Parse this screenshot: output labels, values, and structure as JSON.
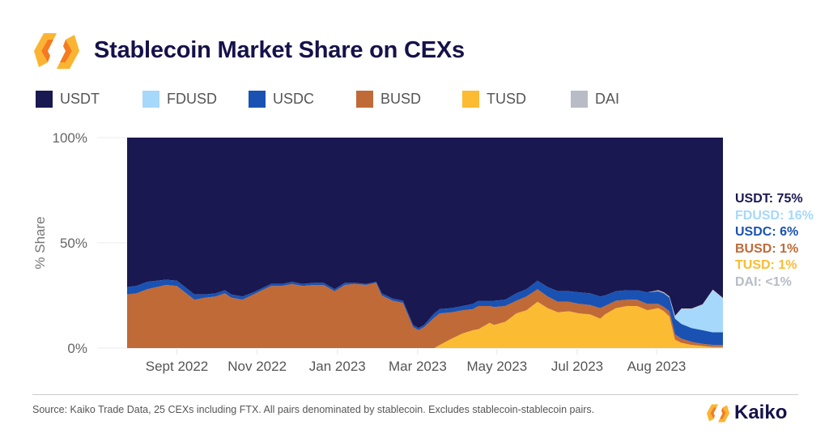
{
  "header": {
    "title": "Stablecoin Market Share on CEXs",
    "logo_icon": "kaiko-hexagon-logo-icon"
  },
  "legend": [
    {
      "name": "USDT",
      "color": "#1a1850"
    },
    {
      "name": "FDUSD",
      "color": "#a6d8fb"
    },
    {
      "name": "USDC",
      "color": "#1a52b3"
    },
    {
      "name": "BUSD",
      "color": "#c06a38"
    },
    {
      "name": "TUSD",
      "color": "#fbbb32"
    },
    {
      "name": "DAI",
      "color": "#b9bcc6"
    }
  ],
  "end_labels": [
    {
      "text": "USDT: 75%",
      "color": "#1a1850"
    },
    {
      "text": "FDUSD: 16%",
      "color": "#a6d8fb"
    },
    {
      "text": "USDC: 6%",
      "color": "#1a52b3"
    },
    {
      "text": "BUSD: 1%",
      "color": "#c06a38"
    },
    {
      "text": "TUSD: 1%",
      "color": "#fbbb32"
    },
    {
      "text": "DAI: <1%",
      "color": "#b9bcc6"
    }
  ],
  "footer": {
    "source": "Source: Kaiko Trade Data, 25 CEXs including FTX. All pairs denominated by stablecoin. Excludes stablecoin-stablecoin pairs.",
    "brand": "Kaiko"
  },
  "chart_data": {
    "type": "area",
    "stacked": true,
    "normalized": true,
    "title": "Stablecoin Market Share on CEXs",
    "xlabel": "",
    "ylabel": "% Share",
    "ylim": [
      0,
      100
    ],
    "yticks": [
      "0%",
      "50%",
      "100%"
    ],
    "xtick_labels": [
      "Sept 2022",
      "Nov 2022",
      "Jan 2023",
      "Mar 2023",
      "May 2023",
      "Jul 2023",
      "Aug 2023"
    ],
    "xtick_weeks": [
      5.4,
      14.1,
      22.8,
      31.5,
      40.1,
      48.8,
      57.4
    ],
    "x_weeks_range": [
      0,
      64.6
    ],
    "grid": true,
    "legend_position": "top",
    "x_weeks": [
      0,
      1,
      2.2,
      4.2,
      5.4,
      7.3,
      8.5,
      9.6,
      10.6,
      11.3,
      12.5,
      13.7,
      14.4,
      15.6,
      16.8,
      17.9,
      19,
      20.2,
      21.3,
      22.5,
      23.6,
      24.7,
      25.9,
      27,
      27.6,
      28.8,
      29.9,
      31,
      31.6,
      32.2,
      33.3,
      33.9,
      35.2,
      36.4,
      37.5,
      38.1,
      39.3,
      39.8,
      41,
      42.2,
      43.3,
      44.5,
      45.6,
      46.7,
      47.9,
      49,
      50.2,
      51.3,
      51.8,
      53,
      54.2,
      55.3,
      56.4,
      57.6,
      58.2,
      58.8,
      59.4,
      60.1,
      61.2,
      62.4,
      63.5,
      64.6
    ],
    "series": [
      {
        "name": "TUSD",
        "values": [
          0,
          0,
          0,
          0,
          0,
          0,
          0,
          0,
          0,
          0,
          0,
          0,
          0,
          0,
          0,
          0,
          0,
          0,
          0,
          0,
          0,
          0,
          0,
          0,
          0,
          0,
          0,
          0,
          0,
          0,
          0,
          1.5,
          4.5,
          7,
          8.5,
          9,
          12,
          11,
          12.5,
          16.5,
          18,
          22,
          19,
          17,
          17.5,
          16.5,
          16,
          14,
          16,
          19,
          20,
          20,
          18,
          19,
          17.5,
          15,
          4,
          2.5,
          1.5,
          1,
          0.5,
          0.5
        ]
      },
      {
        "name": "BUSD",
        "values": [
          25.5,
          26,
          28,
          30,
          29.5,
          23,
          24,
          24.5,
          26,
          24,
          23,
          25.5,
          27,
          29.5,
          29.5,
          30.5,
          29.5,
          30,
          30,
          27,
          30,
          30.5,
          30,
          31,
          25,
          22.5,
          21.5,
          10,
          8.5,
          10,
          14.5,
          15,
          12.5,
          11,
          10,
          11,
          8,
          8.5,
          7.5,
          6,
          6.5,
          6,
          5.5,
          5,
          4.5,
          4.5,
          4.5,
          5,
          4,
          3.5,
          3,
          3,
          3,
          2,
          2,
          2.5,
          2.5,
          2,
          1.5,
          1,
          1,
          1
        ]
      },
      {
        "name": "USDC",
        "values": [
          3.5,
          3.5,
          3.5,
          2.5,
          2.5,
          2.5,
          1.5,
          1.5,
          1.5,
          1.5,
          1.5,
          1,
          1,
          1,
          1,
          1,
          1,
          1,
          1,
          1,
          1,
          0.5,
          0.5,
          0.5,
          1,
          1,
          1,
          1,
          1,
          1,
          2,
          2,
          2,
          2,
          2.5,
          2.5,
          2.5,
          3,
          3,
          3.5,
          3.5,
          4,
          4.5,
          5,
          5,
          5.5,
          5.5,
          5.5,
          5,
          4.5,
          4.5,
          4.5,
          5.5,
          6,
          6.5,
          6.5,
          7.5,
          7,
          6.5,
          6.5,
          6,
          6
        ]
      },
      {
        "name": "FDUSD",
        "values": [
          0,
          0,
          0,
          0,
          0,
          0,
          0,
          0,
          0,
          0,
          0,
          0,
          0,
          0,
          0,
          0,
          0,
          0,
          0,
          0,
          0,
          0,
          0,
          0,
          0,
          0,
          0,
          0,
          0,
          0,
          0,
          0,
          0,
          0,
          0,
          0,
          0,
          0,
          0,
          0,
          0,
          0,
          0,
          0,
          0,
          0,
          0,
          0,
          0,
          0,
          0,
          0,
          0,
          0,
          0,
          0,
          1,
          7,
          9,
          12,
          20,
          16
        ]
      },
      {
        "name": "DAI",
        "values": [
          0,
          0,
          0,
          0,
          0,
          0,
          0,
          0,
          0,
          0,
          0,
          0,
          0,
          0,
          0,
          0,
          0,
          0,
          0,
          0,
          0,
          0,
          0,
          0,
          0,
          0,
          0,
          0,
          0,
          0,
          0,
          0,
          0,
          0,
          0,
          0,
          0,
          0,
          0,
          0,
          0,
          0,
          0,
          0,
          0,
          0,
          0,
          0,
          0,
          0,
          0,
          0,
          0,
          0.5,
          0.5,
          0.5,
          0.3,
          0.3,
          0.3,
          0.3,
          0.3,
          0.3
        ]
      },
      {
        "name": "USDT",
        "remainder": true
      }
    ]
  }
}
